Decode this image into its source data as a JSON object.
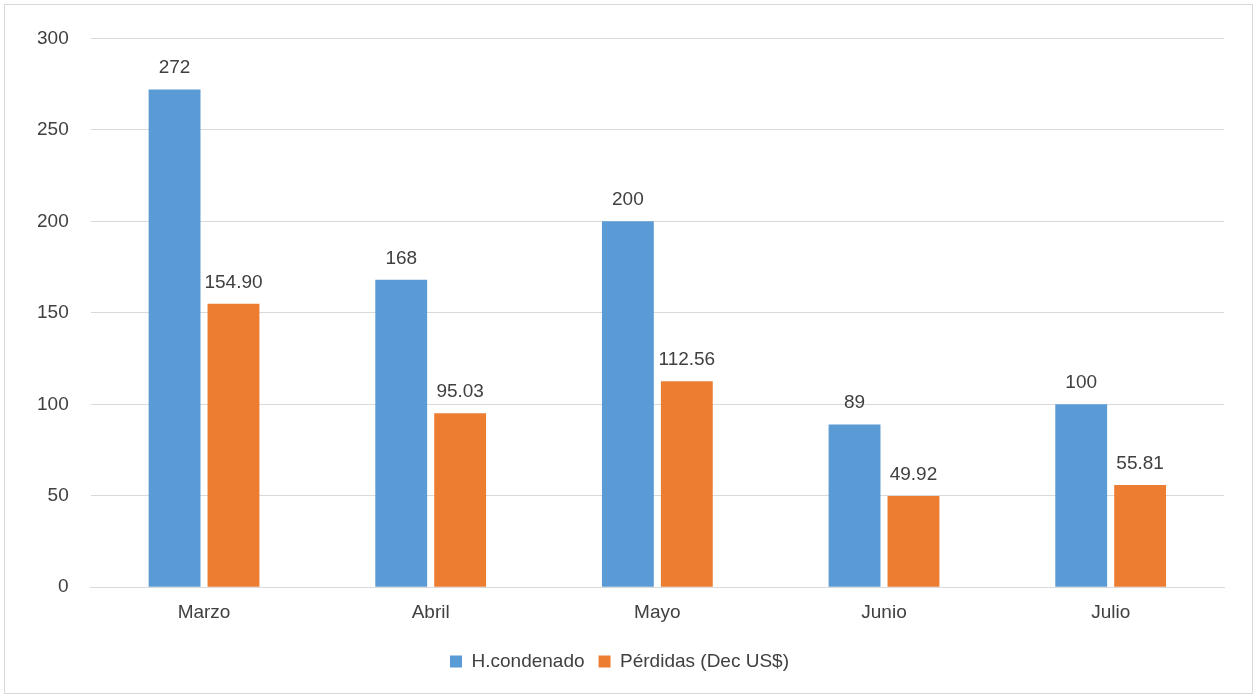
{
  "chart_data": {
    "type": "bar",
    "categories": [
      "Marzo",
      "Abril",
      "Mayo",
      "Junio",
      "Julio"
    ],
    "series": [
      {
        "name": "H.condenado",
        "color": "#5b9bd5",
        "values": [
          272,
          168,
          200,
          89,
          100
        ],
        "value_labels": [
          "272",
          "168",
          "200",
          "89",
          "100"
        ]
      },
      {
        "name": "Pérdidas (Dec US$)",
        "color": "#ed7d31",
        "values": [
          154.9,
          95.03,
          112.56,
          49.92,
          55.81
        ],
        "value_labels": [
          "154.90",
          "95.03",
          "112.56",
          "49.92",
          "55.81"
        ]
      }
    ],
    "ylim": [
      0,
      300
    ],
    "yticks": [
      0,
      50,
      100,
      150,
      200,
      250,
      300
    ],
    "grid": "y",
    "legend": "bottom"
  }
}
